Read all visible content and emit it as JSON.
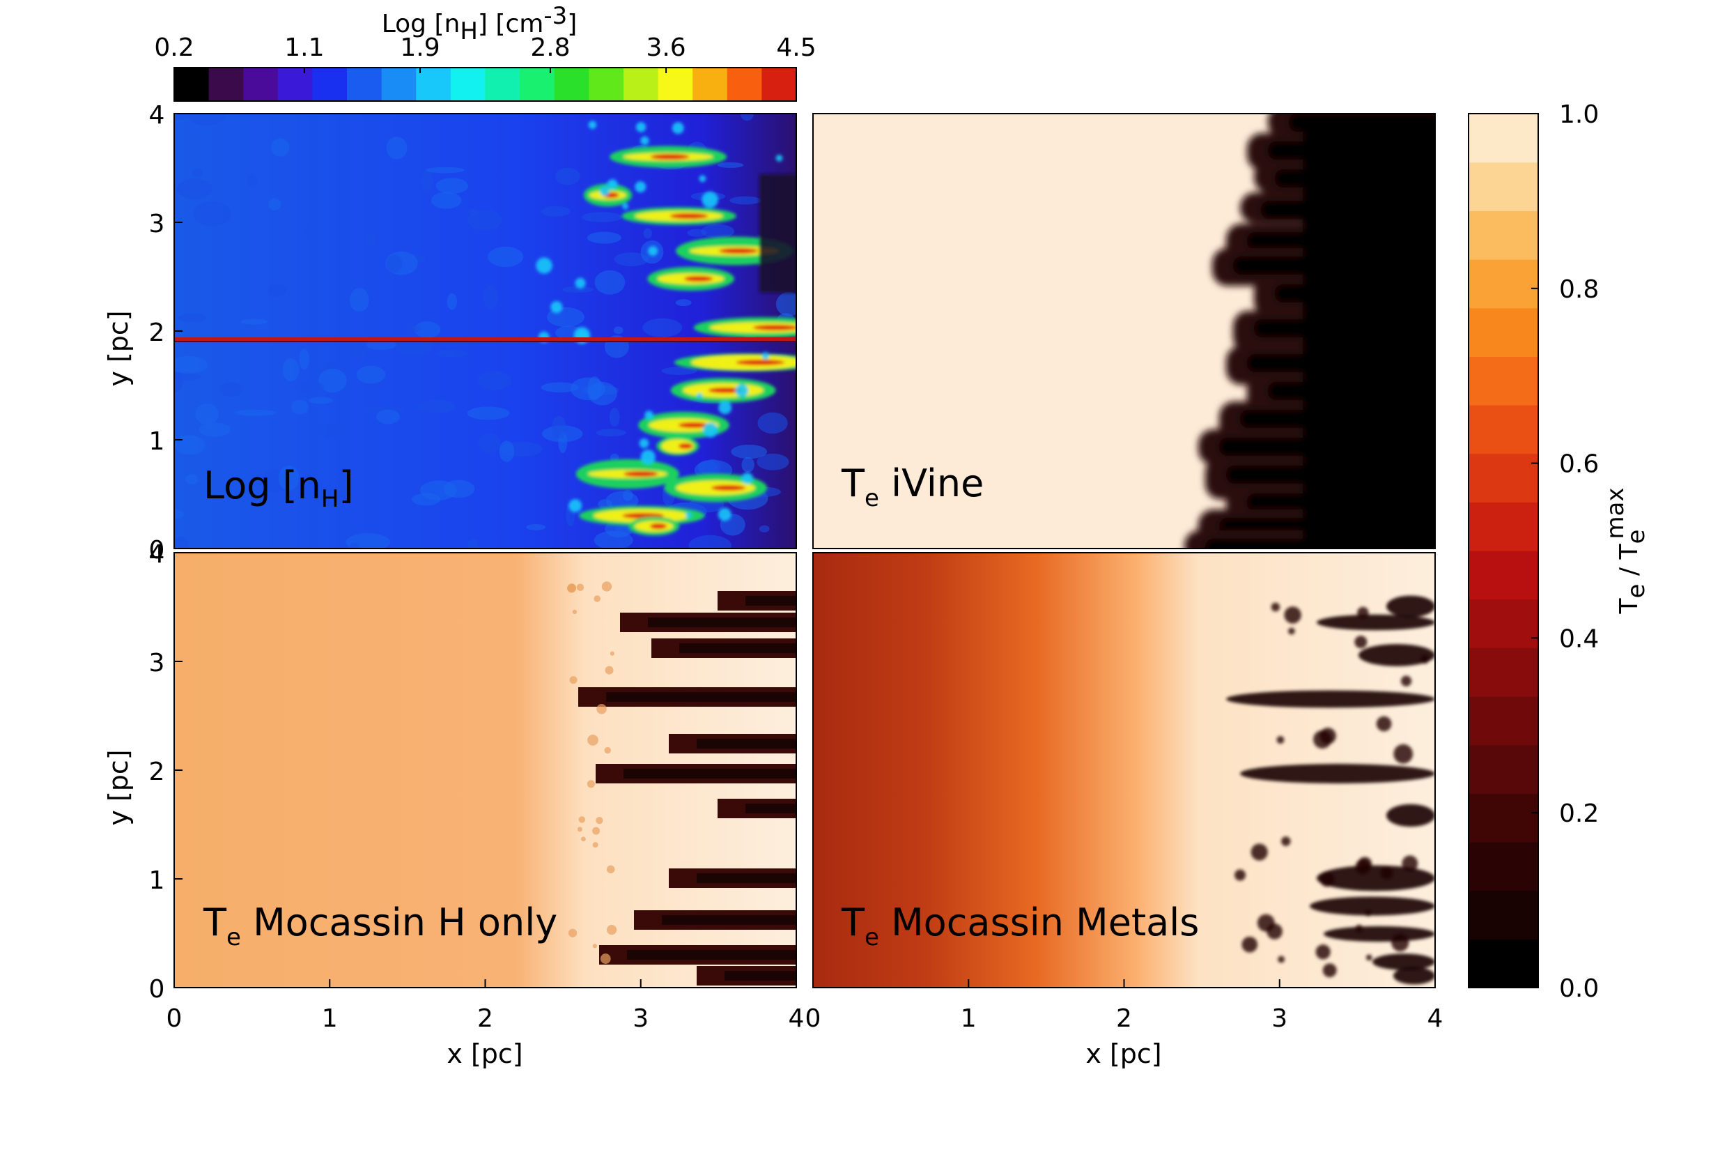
{
  "chart_data": [
    {
      "type": "heatmap",
      "panel": "top-left",
      "label_main": "Log [n",
      "label_sub": "H",
      "label_tail": "]",
      "xlim": [
        0,
        4
      ],
      "ylim": [
        0,
        4
      ],
      "ylabel": "y [pc]",
      "yticks": [
        "0",
        "1",
        "2",
        "3",
        "4"
      ],
      "colormap": "rainbow",
      "colorbar": {
        "title_main": "Log [n",
        "title_sub": "H",
        "title_mid": "] [cm",
        "title_sup": "-3",
        "title_tail": "]",
        "range": [
          0.2,
          4.5
        ],
        "ticks": [
          "0.2",
          "1.1",
          "1.9",
          "2.8",
          "3.6",
          "4.5"
        ],
        "colors": [
          "#000000",
          "#3a0a4a",
          "#4a0a9a",
          "#3a1ad8",
          "#1a30f0",
          "#1a5cf0",
          "#1a8cf5",
          "#18c8fa",
          "#12f0f0",
          "#12f0b0",
          "#1af070",
          "#2ae02a",
          "#60e81a",
          "#b8f018",
          "#f8f818",
          "#f8b010",
          "#f86010",
          "#d82010"
        ]
      }
    },
    {
      "type": "heatmap",
      "panel": "top-right",
      "label_main": "T",
      "label_sub": "e",
      "label_tail": " iVine",
      "xlim": [
        0,
        4
      ],
      "ylim": [
        0,
        4
      ],
      "colormap": "heat"
    },
    {
      "type": "heatmap",
      "panel": "bottom-left",
      "label_main": "T",
      "label_sub": "e",
      "label_tail": " Mocassin H only",
      "xlim": [
        0,
        4
      ],
      "ylim": [
        0,
        4
      ],
      "xlabel": "x [pc]",
      "ylabel": "y [pc]",
      "xticks": [
        "0",
        "1",
        "2",
        "3",
        "4"
      ],
      "yticks": [
        "0",
        "1",
        "2",
        "3",
        "4"
      ],
      "colormap": "heat"
    },
    {
      "type": "heatmap",
      "panel": "bottom-right",
      "label_main": "T",
      "label_sub": "e",
      "label_tail": " Mocassin Metals",
      "xlim": [
        0,
        4
      ],
      "ylim": [
        0,
        4
      ],
      "xlabel": "x [pc]",
      "xticks": [
        "0",
        "1",
        "2",
        "3",
        "4"
      ],
      "colormap": "heat"
    }
  ],
  "heat_colorbar": {
    "label_main": "T",
    "label_sub": "e",
    "label_mid": " / T",
    "label_sub2": "e",
    "label_sup2": "max",
    "range": [
      0.0,
      1.0
    ],
    "ticks": [
      "0.0",
      "0.2",
      "0.4",
      "0.6",
      "0.8",
      "1.0"
    ],
    "colors": [
      "#000000",
      "#180202",
      "#2a0404",
      "#400606",
      "#580808",
      "#700a0a",
      "#880c0c",
      "#a00e0e",
      "#b81010",
      "#cc2010",
      "#dc3812",
      "#ea5014",
      "#f46c18",
      "#f8881e",
      "#faa236",
      "#fbbc60",
      "#fcd494",
      "#fde8c8"
    ]
  }
}
